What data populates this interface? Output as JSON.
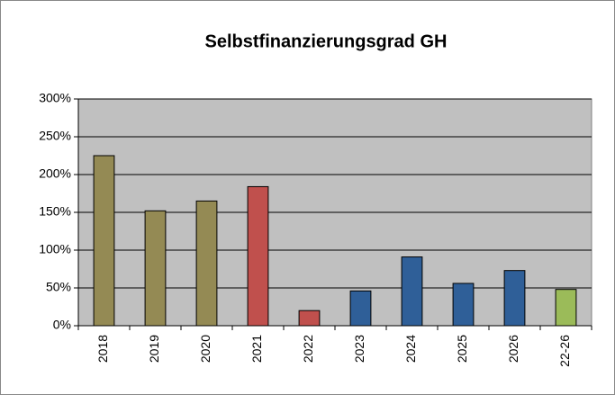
{
  "chart_data": {
    "type": "bar",
    "title": "Selbstfinanzierungsgrad GH",
    "categories": [
      "2018",
      "2019",
      "2020",
      "2021",
      "2022",
      "2023",
      "2024",
      "2025",
      "2026",
      "22-26"
    ],
    "values": [
      225,
      152,
      165,
      184,
      20,
      46,
      91,
      56,
      73,
      48
    ],
    "colors": [
      "#948a54",
      "#948a54",
      "#948a54",
      "#c0504d",
      "#c0504d",
      "#2f5f98",
      "#2f5f98",
      "#2f5f98",
      "#2f5f98",
      "#9bbb59"
    ],
    "ylim": [
      0,
      300
    ],
    "yticks": [
      {
        "value": 0,
        "label": "0%"
      },
      {
        "value": 50,
        "label": "50%"
      },
      {
        "value": 100,
        "label": "100%"
      },
      {
        "value": 150,
        "label": "150%"
      },
      {
        "value": 200,
        "label": "200%"
      },
      {
        "value": 250,
        "label": "250%"
      },
      {
        "value": 300,
        "label": "300%"
      }
    ],
    "grid": true
  }
}
